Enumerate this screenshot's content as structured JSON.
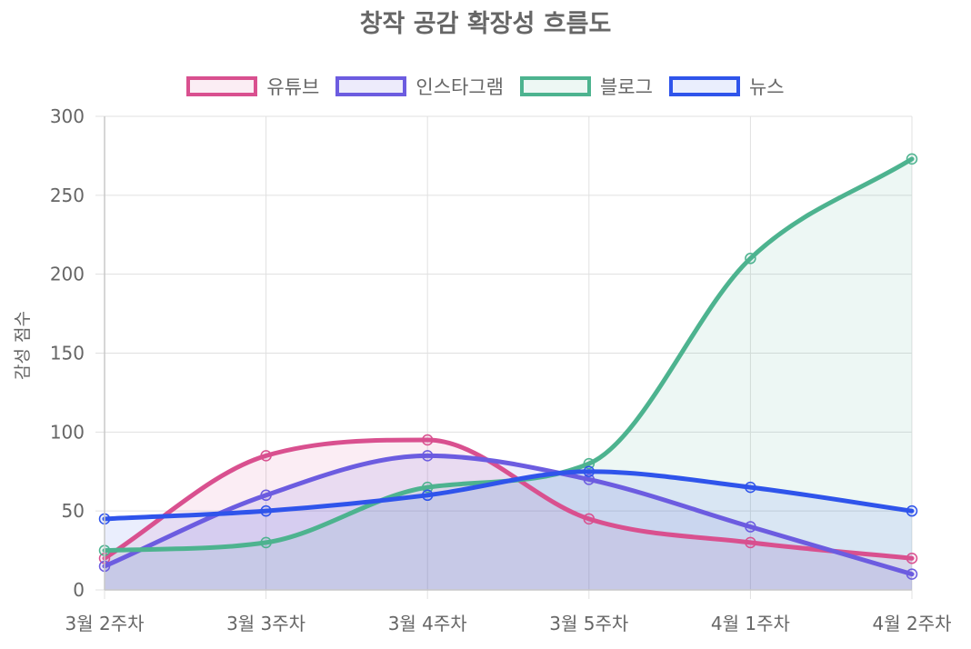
{
  "chart_data": {
    "type": "line",
    "title": "창작 공감 확장성 흐름도",
    "xlabel": "",
    "ylabel": "감성 점수",
    "ylim": [
      0,
      300
    ],
    "yticks": [
      0,
      50,
      100,
      150,
      200,
      250,
      300
    ],
    "grid": true,
    "legend_position": "top",
    "categories": [
      "3월 2주차",
      "3월 3주차",
      "3월 4주차",
      "3월 5주차",
      "4월 1주차",
      "4월 2주차"
    ],
    "series": [
      {
        "name": "유튜브",
        "values": [
          20,
          85,
          95,
          45,
          30,
          20
        ],
        "color": "#d9508f",
        "fill": "rgba(217,80,143,0.1)"
      },
      {
        "name": "인스타그램",
        "values": [
          15,
          60,
          85,
          70,
          40,
          10
        ],
        "color": "#6c5ce0",
        "fill": "rgba(108,92,224,0.12)"
      },
      {
        "name": "블로그",
        "values": [
          25,
          30,
          65,
          80,
          210,
          273
        ],
        "color": "#4db38f",
        "fill": "rgba(77,179,143,0.1)"
      },
      {
        "name": "뉴스",
        "values": [
          45,
          50,
          60,
          75,
          65,
          50
        ],
        "color": "#2f54eb",
        "fill": "rgba(47,84,235,0.1)"
      }
    ]
  }
}
